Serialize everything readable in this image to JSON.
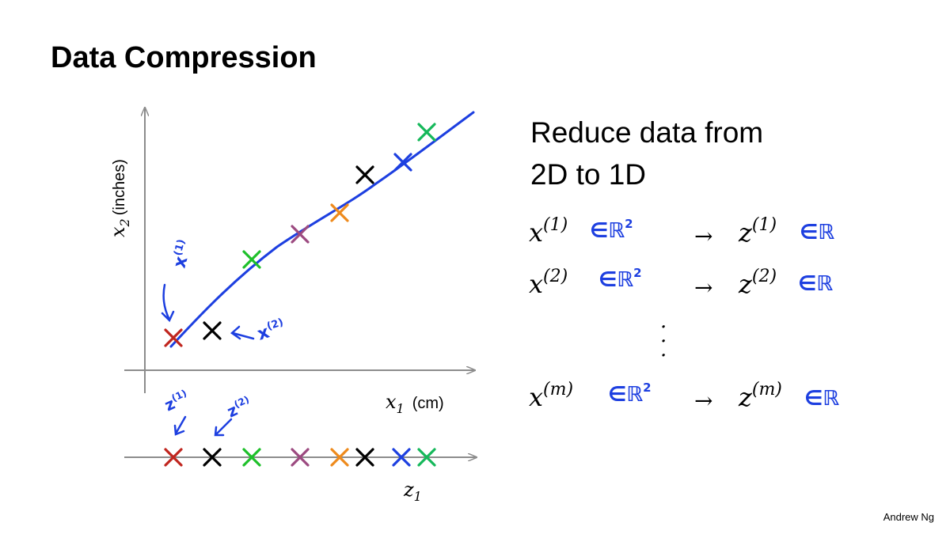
{
  "slide": {
    "title": "Data Compression",
    "footer": "Andrew Ng"
  },
  "plot": {
    "y_label_var": "x",
    "y_label_sub": "2",
    "y_label_unit": "(inches)",
    "x_label_var": "x",
    "x_label_sub": "1",
    "x_label_unit": "(cm)",
    "z_label_var": "z",
    "z_label_sub": "1",
    "annot_x1_base": "x",
    "annot_x1_sup": "(1)",
    "annot_x2_base": "x",
    "annot_x2_sup": "(2)",
    "annot_z1_base": "z",
    "annot_z1_sup": "(1)",
    "annot_z2_base": "z",
    "annot_z2_sup": "(2)"
  },
  "text": {
    "line1": "Reduce data from",
    "line2": "2D to 1D",
    "rows": [
      {
        "x_base": "x",
        "x_sup": "(1)",
        "x_space": "∈ℝ",
        "x_space_exp": "2",
        "z_base": "z",
        "z_sup": "(1)",
        "z_space": "∈ℝ"
      },
      {
        "x_base": "x",
        "x_sup": "(2)",
        "x_space": "∈ℝ",
        "x_space_exp": "2",
        "z_base": "z",
        "z_sup": "(2)",
        "z_space": "∈ℝ"
      },
      {
        "x_base": "x",
        "x_sup": "(m)",
        "x_space": "∈ℝ",
        "x_space_exp": "2",
        "z_base": "z",
        "z_sup": "(m)",
        "z_space": "∈ℝ"
      }
    ],
    "arrow": "→",
    "ellipsis_dot": "·"
  },
  "colors": {
    "pen": "#1d3fe0",
    "red": "#c0251e",
    "black": "#000000",
    "green": "#1ec02a",
    "purple": "#9c4a80",
    "orange": "#ee8a1c",
    "blue": "#1d3fe0",
    "teal": "#15b85a",
    "axis": "#8c8c8c"
  },
  "chart_data": {
    "type": "scatter",
    "title": "",
    "xlabel": "x1 (cm)",
    "ylabel": "x2 (inches)",
    "points": [
      {
        "label": "x(1)",
        "color": "red",
        "z1_order": 1
      },
      {
        "label": "x(2)",
        "color": "black",
        "z1_order": 2
      },
      {
        "label": "",
        "color": "green",
        "z1_order": 3
      },
      {
        "label": "",
        "color": "purple",
        "z1_order": 4
      },
      {
        "label": "",
        "color": "orange",
        "z1_order": 5
      },
      {
        "label": "",
        "color": "black",
        "z1_order": 6
      },
      {
        "label": "",
        "color": "blue",
        "z1_order": 7
      },
      {
        "label": "",
        "color": "teal",
        "z1_order": 8
      }
    ],
    "projection_axis": "z1"
  }
}
